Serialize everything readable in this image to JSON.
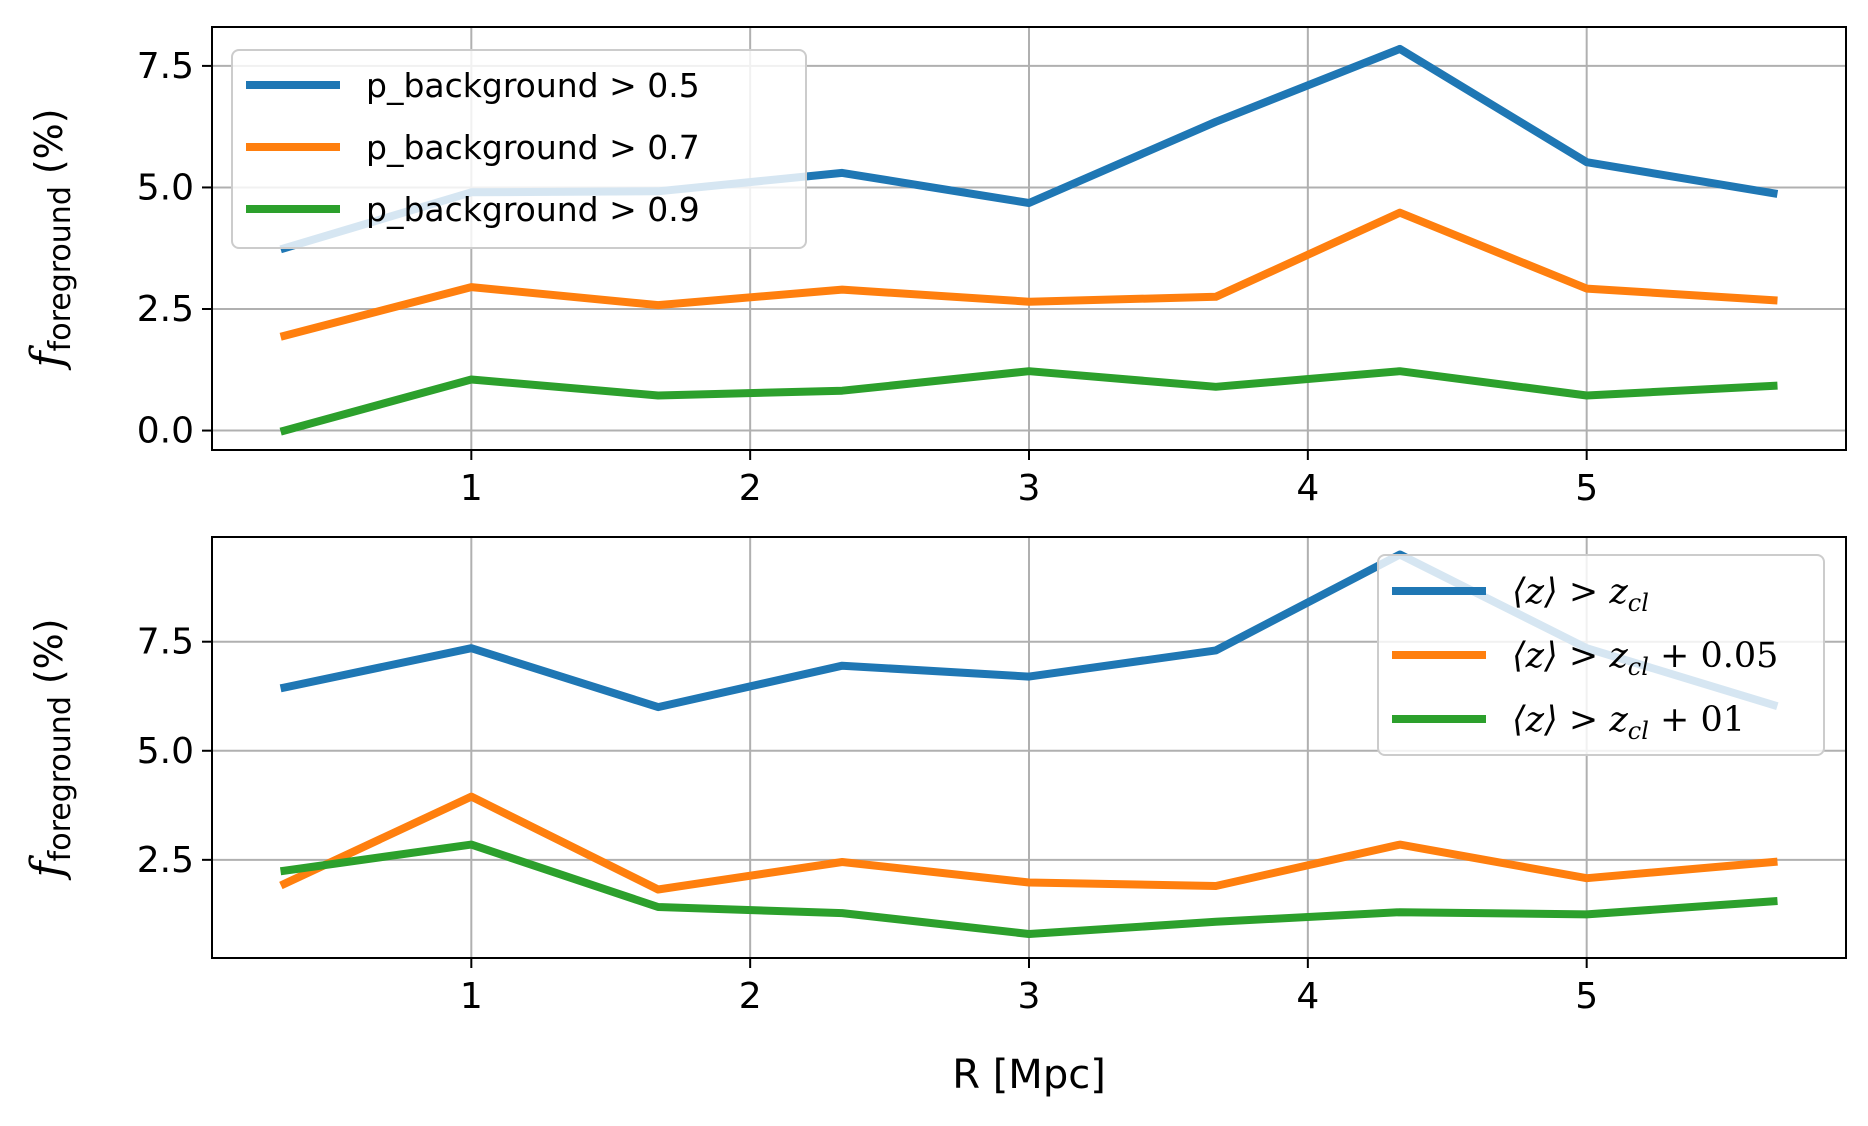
{
  "chart_data": [
    {
      "type": "line",
      "ylabel_symbol": "f",
      "ylabel_subscript": "foreground",
      "ylabel_unit": "(%)",
      "xlabel": "",
      "x_ticks": [
        1,
        2,
        3,
        4,
        5
      ],
      "y_ticks": [
        "0.0",
        "2.5",
        "5.0",
        "7.5"
      ],
      "xlim": [
        0.07,
        5.93
      ],
      "ylim": [
        -0.4,
        8.3
      ],
      "grid": true,
      "legend_position": "upper-left",
      "x": [
        0.33,
        1.0,
        1.67,
        2.33,
        3.0,
        3.67,
        4.33,
        5.0,
        5.67
      ],
      "series": [
        {
          "name": "p_background > 0.5",
          "color": "#1f77b4",
          "values": [
            3.75,
            4.9,
            4.92,
            5.3,
            4.68,
            6.35,
            7.85,
            5.52,
            4.88
          ]
        },
        {
          "name": "p_background > 0.7",
          "color": "#ff7f0e",
          "values": [
            1.95,
            2.95,
            2.58,
            2.9,
            2.65,
            2.75,
            4.48,
            2.92,
            2.68
          ]
        },
        {
          "name": "p_background > 0.9",
          "color": "#2ca02c",
          "values": [
            0.0,
            1.05,
            0.72,
            0.82,
            1.22,
            0.9,
            1.22,
            0.72,
            0.92
          ]
        }
      ]
    },
    {
      "type": "line",
      "ylabel_symbol": "f",
      "ylabel_subscript": "foreground",
      "ylabel_unit": "(%)",
      "xlabel": "R [Mpc]",
      "x_ticks": [
        1,
        2,
        3,
        4,
        5
      ],
      "y_ticks": [
        "2.5",
        "5.0",
        "7.5"
      ],
      "xlim": [
        0.07,
        5.93
      ],
      "ylim": [
        0.25,
        9.9
      ],
      "grid": true,
      "legend_position": "upper-right",
      "x": [
        0.33,
        1.0,
        1.67,
        2.33,
        3.0,
        3.67,
        4.33,
        5.0,
        5.67
      ],
      "series": [
        {
          "name": "⟨z⟩ > z_cl",
          "legend_main": "⟨z⟩ > z",
          "legend_sub": "cl",
          "legend_tail": "",
          "color": "#1f77b4",
          "values": [
            6.45,
            7.35,
            6.0,
            6.95,
            6.7,
            7.3,
            9.5,
            7.35,
            6.05
          ]
        },
        {
          "name": "⟨z⟩ > z_cl + 0.05",
          "legend_main": "⟨z⟩ > z",
          "legend_sub": "cl",
          "legend_tail": " + 0.05",
          "color": "#ff7f0e",
          "values": [
            1.95,
            3.95,
            1.82,
            2.45,
            1.98,
            1.9,
            2.85,
            2.08,
            2.45
          ]
        },
        {
          "name": "⟨z⟩ > z_cl + 01",
          "legend_main": "⟨z⟩ > z",
          "legend_sub": "cl",
          "legend_tail": " + 01",
          "color": "#2ca02c",
          "values": [
            2.25,
            2.85,
            1.42,
            1.28,
            0.8,
            1.08,
            1.3,
            1.25,
            1.55
          ]
        }
      ]
    }
  ]
}
